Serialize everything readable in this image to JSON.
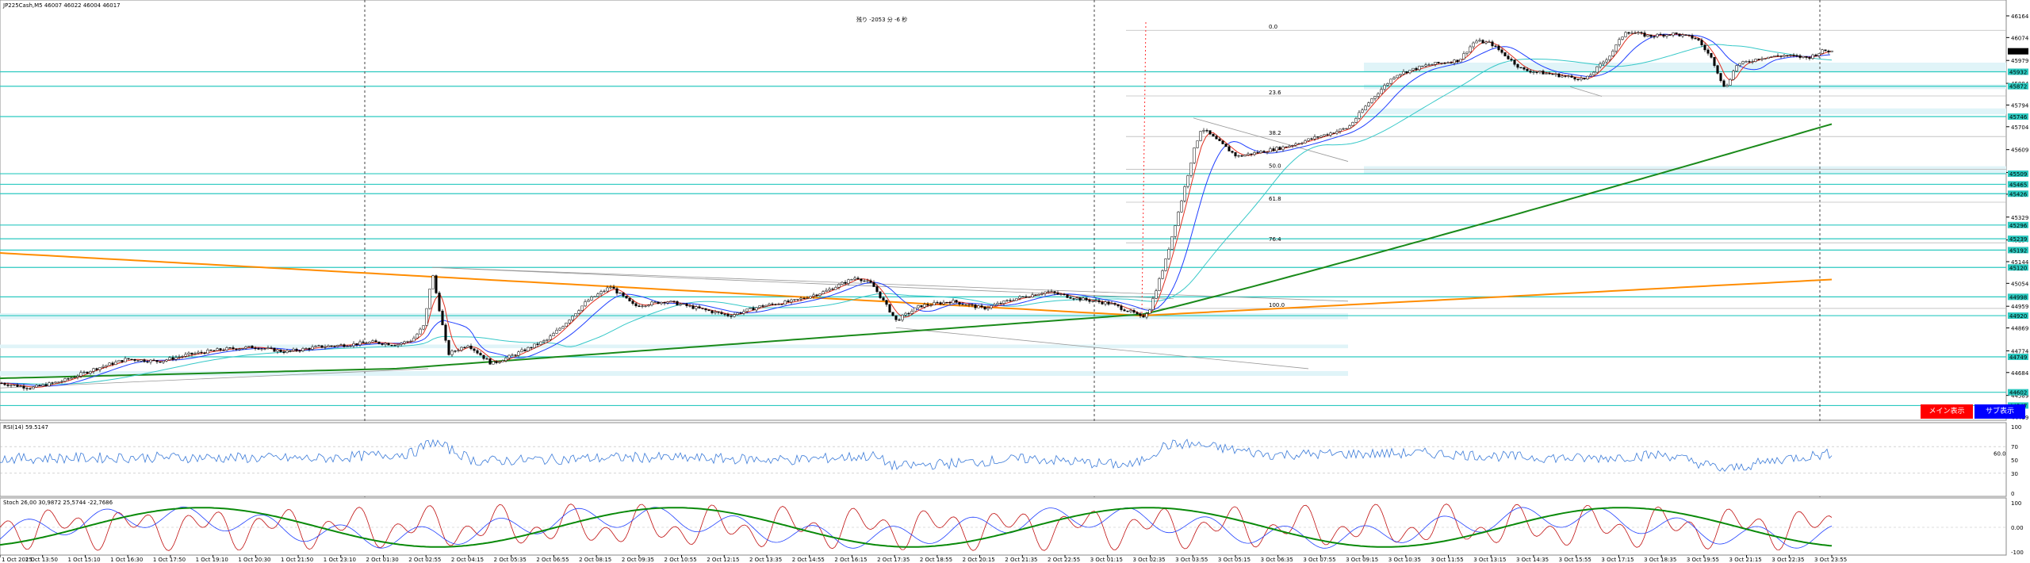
{
  "header": {
    "symbol_info": "JP225Cash,M5  46007 46022 46004 46017",
    "countdown": "残り -2053 分 -6 秒"
  },
  "buttons": {
    "main": "メイン表示",
    "sub": "サブ表示"
  },
  "colors": {
    "bull": "#000000",
    "bear": "#000000",
    "ma_fast": "#1f3fff",
    "ma_red": "#e03020",
    "ma_cyan": "#36c8c8",
    "ma_green": "#1a8a1a",
    "ma_orange": "#ff8c00",
    "level": "#2cc9c0",
    "zone": "#e0f4f8",
    "rsi": "#3a7ad8",
    "stoch_main": "#c01010",
    "stoch_signal": "#2040ff",
    "stoch_slow": "#0a8a0a",
    "btn_main": "#ff0000",
    "btn_sub": "#0000ff"
  },
  "chart_data": [
    {
      "type": "line",
      "name": "price",
      "title": "",
      "y_ticks": [
        "46164",
        "46074",
        "45979",
        "45884",
        "45794",
        "45704",
        "45609",
        "45514",
        "45424",
        "45329",
        "45234",
        "45144",
        "45054",
        "44959",
        "44869",
        "44774",
        "44684",
        "44589",
        "44499"
      ],
      "ylim": [
        44499,
        46164
      ],
      "current_price": "46017",
      "level_tags": [
        "45932",
        "45872",
        "45746",
        "45509",
        "45465",
        "45426",
        "45296",
        "45239",
        "45192",
        "45120",
        "44998",
        "44920",
        "44749",
        "44602",
        "44547"
      ],
      "fib_labels": [
        "0.0",
        "23.6",
        "38.2",
        "50.0",
        "61.8",
        "76.4",
        "100.0"
      ],
      "x_ticks": [
        "1 Oct 2025",
        "1 Oct 13:50",
        "1 Oct 15:10",
        "1 Oct 16:30",
        "1 Oct 17:50",
        "1 Oct 19:10",
        "1 Oct 20:30",
        "1 Oct 21:50",
        "1 Oct 23:10",
        "2 Oct 01:30",
        "2 Oct 02:55",
        "2 Oct 04:15",
        "2 Oct 05:35",
        "2 Oct 06:55",
        "2 Oct 08:15",
        "2 Oct 09:35",
        "2 Oct 10:55",
        "2 Oct 12:15",
        "2 Oct 13:35",
        "2 Oct 14:55",
        "2 Oct 16:15",
        "2 Oct 17:35",
        "2 Oct 18:55",
        "2 Oct 20:15",
        "2 Oct 21:35",
        "2 Oct 22:55",
        "3 Oct 01:15",
        "3 Oct 02:35",
        "3 Oct 03:55",
        "3 Oct 05:15",
        "3 Oct 06:35",
        "3 Oct 07:55",
        "3 Oct 09:15",
        "3 Oct 10:35",
        "3 Oct 11:55",
        "3 Oct 13:15",
        "3 Oct 14:35",
        "3 Oct 15:55",
        "3 Oct 17:15",
        "3 Oct 18:35",
        "3 Oct 19:55",
        "3 Oct 21:15",
        "3 Oct 22:35",
        "3 Oct 23:55"
      ],
      "keypoints": [
        [
          0,
          44640
        ],
        [
          40,
          44620
        ],
        [
          80,
          44650
        ],
        [
          120,
          44700
        ],
        [
          160,
          44740
        ],
        [
          200,
          44730
        ],
        [
          240,
          44760
        ],
        [
          280,
          44780
        ],
        [
          320,
          44790
        ],
        [
          360,
          44770
        ],
        [
          400,
          44790
        ],
        [
          440,
          44800
        ],
        [
          470,
          44810
        ],
        [
          500,
          44800
        ],
        [
          520,
          44820
        ],
        [
          535,
          44880
        ],
        [
          545,
          45100
        ],
        [
          552,
          44980
        ],
        [
          565,
          44760
        ],
        [
          590,
          44800
        ],
        [
          620,
          44720
        ],
        [
          650,
          44760
        ],
        [
          690,
          44820
        ],
        [
          710,
          44880
        ],
        [
          740,
          44980
        ],
        [
          770,
          45040
        ],
        [
          800,
          44960
        ],
        [
          840,
          44980
        ],
        [
          880,
          44950
        ],
        [
          920,
          44920
        ],
        [
          960,
          44960
        ],
        [
          1000,
          44980
        ],
        [
          1040,
          45020
        ],
        [
          1080,
          45080
        ],
        [
          1100,
          45050
        ],
        [
          1130,
          44900
        ],
        [
          1160,
          44960
        ],
        [
          1200,
          44980
        ],
        [
          1240,
          44950
        ],
        [
          1280,
          44990
        ],
        [
          1320,
          45020
        ],
        [
          1360,
          44990
        ],
        [
          1400,
          44970
        ],
        [
          1430,
          44930
        ],
        [
          1440,
          44910
        ],
        [
          1450,
          44950
        ],
        [
          1470,
          45150
        ],
        [
          1490,
          45400
        ],
        [
          1505,
          45600
        ],
        [
          1515,
          45700
        ],
        [
          1530,
          45660
        ],
        [
          1560,
          45580
        ],
        [
          1590,
          45600
        ],
        [
          1620,
          45620
        ],
        [
          1660,
          45660
        ],
        [
          1700,
          45700
        ],
        [
          1730,
          45820
        ],
        [
          1760,
          45920
        ],
        [
          1800,
          45960
        ],
        [
          1840,
          45980
        ],
        [
          1860,
          46060
        ],
        [
          1880,
          46050
        ],
        [
          1920,
          45940
        ],
        [
          1960,
          45920
        ],
        [
          2000,
          45900
        ],
        [
          2030,
          46000
        ],
        [
          2050,
          46100
        ],
        [
          2080,
          46080
        ],
        [
          2110,
          46090
        ],
        [
          2140,
          46070
        ],
        [
          2160,
          45980
        ],
        [
          2175,
          45860
        ],
        [
          2190,
          45960
        ],
        [
          2220,
          45990
        ],
        [
          2250,
          46000
        ],
        [
          2280,
          45990
        ],
        [
          2300,
          46020
        ],
        [
          2310,
          46017
        ]
      ]
    },
    {
      "type": "line",
      "name": "RSI(14) 59.5147",
      "y_ticks": [
        "100",
        "70",
        "50",
        "30",
        "0"
      ],
      "ylim": [
        0,
        100
      ],
      "ref_level": "60.0",
      "keypoints": [
        [
          0,
          52
        ],
        [
          200,
          54
        ],
        [
          400,
          52
        ],
        [
          520,
          60
        ],
        [
          545,
          78
        ],
        [
          600,
          48
        ],
        [
          800,
          54
        ],
        [
          1000,
          50
        ],
        [
          1100,
          56
        ],
        [
          1130,
          40
        ],
        [
          1300,
          52
        ],
        [
          1380,
          45
        ],
        [
          1430,
          42
        ],
        [
          1470,
          72
        ],
        [
          1500,
          74
        ],
        [
          1600,
          58
        ],
        [
          1800,
          60
        ],
        [
          1900,
          55
        ],
        [
          2000,
          52
        ],
        [
          2100,
          58
        ],
        [
          2160,
          40
        ],
        [
          2175,
          35
        ],
        [
          2250,
          52
        ],
        [
          2310,
          59.5
        ]
      ]
    },
    {
      "type": "line",
      "name": "Stoch",
      "header": "Stoch 26,00 30,9872 25,5744 -22,7686",
      "y_ticks": [
        "100",
        "0.00",
        "-100"
      ],
      "ylim": [
        -100,
        100
      ]
    }
  ]
}
